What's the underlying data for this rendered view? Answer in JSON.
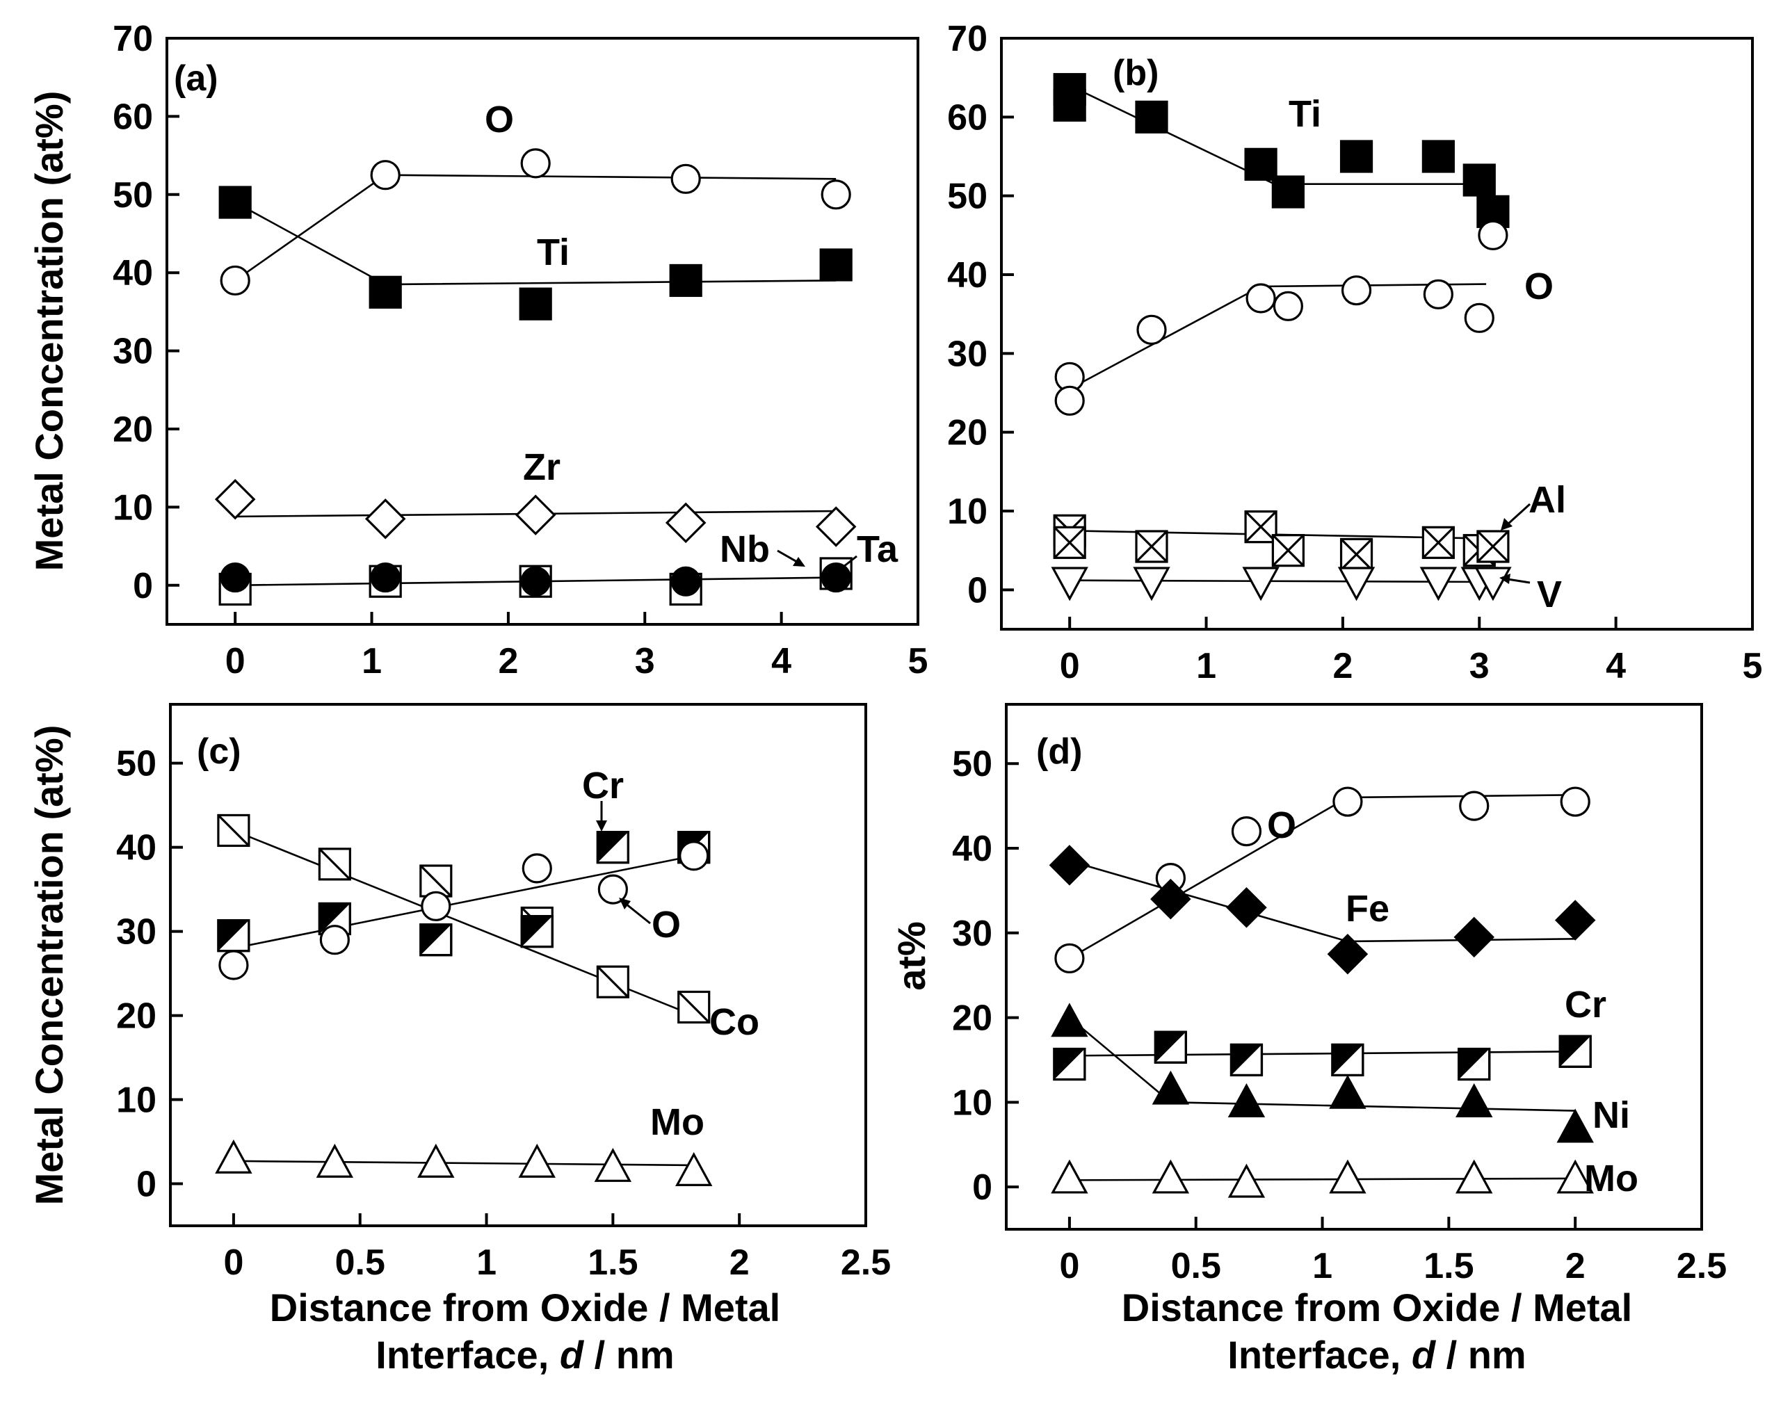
{
  "chart_data": [
    {
      "id": "a",
      "type": "scatter",
      "panel_label": "(a)",
      "xlabel": "",
      "ylabel": "Metal Concentration (at%)",
      "xlim": [
        -0.5,
        5
      ],
      "ylim": [
        -5,
        70
      ],
      "xticks": [
        "0",
        "1",
        "2",
        "3",
        "4",
        "5"
      ],
      "yticks": [
        "0",
        "10",
        "20",
        "30",
        "40",
        "50",
        "60",
        "70"
      ],
      "series": [
        {
          "name": "O",
          "marker": "circle-open",
          "x": [
            0,
            1.1,
            2.2,
            3.3,
            4.4
          ],
          "y": [
            39,
            52.5,
            54,
            52,
            50
          ],
          "fit": [
            [
              0,
              39
            ],
            [
              1.1,
              52.5
            ],
            [
              4.4,
              52
            ]
          ]
        },
        {
          "name": "Ti",
          "marker": "square-filled",
          "x": [
            0,
            1.1,
            2.2,
            3.3,
            4.4
          ],
          "y": [
            49,
            37.5,
            36,
            39,
            41
          ],
          "fit": [
            [
              0,
              49
            ],
            [
              1.1,
              38.5
            ],
            [
              4.4,
              39
            ]
          ]
        },
        {
          "name": "Zr",
          "marker": "diamond-open",
          "x": [
            0,
            1.1,
            2.2,
            3.3,
            4.4
          ],
          "y": [
            11,
            8.5,
            9,
            8,
            7.5
          ],
          "fit": [
            [
              0,
              8.8
            ],
            [
              4.4,
              9.5
            ]
          ]
        },
        {
          "name": "Nb",
          "marker": "square-open",
          "x": [
            0,
            1.1,
            2.2,
            3.3,
            4.4
          ],
          "y": [
            -0.5,
            0.5,
            0.5,
            -0.5,
            1.5
          ],
          "fit": [
            [
              0,
              0
            ],
            [
              4.4,
              1
            ]
          ]
        },
        {
          "name": "Ta",
          "marker": "circle-filled",
          "x": [
            0,
            1.1,
            2.2,
            3.3,
            4.4
          ],
          "y": [
            1,
            1,
            0.5,
            0.5,
            1
          ],
          "fit": null
        }
      ]
    },
    {
      "id": "b",
      "type": "scatter",
      "panel_label": "(b)",
      "xlabel": "",
      "ylabel": "",
      "xlim": [
        -0.5,
        5
      ],
      "ylim": [
        -5,
        70
      ],
      "xticks": [
        "0",
        "1",
        "2",
        "3",
        "4",
        "5"
      ],
      "yticks": [
        "0",
        "10",
        "20",
        "30",
        "40",
        "50",
        "60",
        "70"
      ],
      "series": [
        {
          "name": "Ti",
          "marker": "square-filled",
          "x": [
            0,
            0,
            0.6,
            1.4,
            1.6,
            2.1,
            2.7,
            3.0,
            3.1
          ],
          "y": [
            63.5,
            61.5,
            60,
            54,
            50.5,
            55,
            55,
            52,
            48
          ],
          "fit": [
            [
              0,
              64
            ],
            [
              1.5,
              51.5
            ],
            [
              3.05,
              51.5
            ],
            [
              3.1,
              46
            ]
          ]
        },
        {
          "name": "O",
          "marker": "circle-open",
          "x": [
            0,
            0,
            0.6,
            1.4,
            1.6,
            2.1,
            2.7,
            3.0,
            3.1
          ],
          "y": [
            27,
            24,
            33,
            37,
            36,
            38,
            37.5,
            34.5,
            45
          ],
          "fit": [
            [
              0,
              25.5
            ],
            [
              1.4,
              38.5
            ],
            [
              3.05,
              38.8
            ]
          ]
        },
        {
          "name": "Al",
          "marker": "square-x",
          "x": [
            0,
            0,
            0.6,
            1.4,
            1.6,
            2.1,
            2.7,
            3.0,
            3.1
          ],
          "y": [
            7.5,
            6,
            5.5,
            8,
            5,
            4.5,
            6,
            5,
            5.5
          ],
          "fit": [
            [
              0,
              7.5
            ],
            [
              3.1,
              6.5
            ]
          ]
        },
        {
          "name": "V",
          "marker": "triangle-down-open",
          "x": [
            0,
            0.6,
            1.4,
            2.1,
            2.7,
            3.0,
            3.1
          ],
          "y": [
            1,
            1,
            1,
            1,
            1,
            1,
            1
          ],
          "fit": [
            [
              0,
              1.2
            ],
            [
              3.1,
              1
            ]
          ]
        }
      ]
    },
    {
      "id": "c",
      "type": "scatter",
      "panel_label": "(c)",
      "xlabel": "Distance from Oxide / Metal Interface, d / nm",
      "ylabel": "Metal Concentration (at%)",
      "xlim": [
        -0.25,
        2.5
      ],
      "ylim": [
        -5,
        57
      ],
      "xticks": [
        "0",
        "0.5",
        "1",
        "1.5",
        "2",
        "2.5"
      ],
      "yticks": [
        "0",
        "10",
        "20",
        "30",
        "40",
        "50"
      ],
      "series": [
        {
          "name": "Co",
          "marker": "square-diag",
          "x": [
            0,
            0.4,
            0.8,
            1.2,
            1.5,
            1.82
          ],
          "y": [
            42,
            38,
            36,
            31,
            24,
            21
          ],
          "fit": [
            [
              0,
              42
            ],
            [
              1.82,
              20
            ]
          ]
        },
        {
          "name": "Cr",
          "marker": "square-half",
          "x": [
            0,
            0.4,
            0.8,
            1.2,
            1.5,
            1.82
          ],
          "y": [
            29.5,
            31.5,
            29,
            30,
            40,
            40
          ],
          "fit": null
        },
        {
          "name": "O",
          "marker": "circle-open",
          "x": [
            0,
            0.4,
            0.8,
            1.2,
            1.5,
            1.82
          ],
          "y": [
            26,
            29,
            33,
            37.5,
            35,
            39
          ],
          "fit": [
            [
              0,
              28
            ],
            [
              1.82,
              39
            ]
          ]
        },
        {
          "name": "Mo",
          "marker": "triangle-up-open",
          "x": [
            0,
            0.4,
            0.8,
            1.2,
            1.5,
            1.82
          ],
          "y": [
            3,
            2.5,
            2.5,
            2.5,
            2,
            1.5
          ],
          "fit": [
            [
              0,
              2.7
            ],
            [
              1.82,
              2.2
            ]
          ]
        }
      ]
    },
    {
      "id": "d",
      "type": "scatter",
      "panel_label": "(d)",
      "xlabel": "Distance from Oxide / Metal Interface, d / nm",
      "ylabel": "at%",
      "xlim": [
        -0.25,
        2.5
      ],
      "ylim": [
        -5,
        57
      ],
      "xticks": [
        "0",
        "0.5",
        "1",
        "1.5",
        "2",
        "2.5"
      ],
      "yticks": [
        "0",
        "10",
        "20",
        "30",
        "40",
        "50"
      ],
      "series": [
        {
          "name": "O",
          "marker": "circle-open",
          "x": [
            0,
            0.4,
            0.7,
            1.1,
            1.6,
            2.0
          ],
          "y": [
            27,
            36.5,
            42,
            45.5,
            45,
            45.5
          ],
          "fit": [
            [
              0,
              27
            ],
            [
              1.1,
              46
            ],
            [
              2.0,
              46.3
            ]
          ]
        },
        {
          "name": "Fe",
          "marker": "diamond-filled",
          "x": [
            0,
            0.4,
            0.7,
            1.1,
            1.6,
            2.0
          ],
          "y": [
            38,
            34,
            33,
            27.5,
            29.5,
            31.5
          ],
          "fit": [
            [
              0,
              38.5
            ],
            [
              1.1,
              29
            ],
            [
              2.0,
              29.3
            ]
          ]
        },
        {
          "name": "Cr",
          "marker": "square-half",
          "x": [
            0,
            0.4,
            0.7,
            1.1,
            1.6,
            2.0
          ],
          "y": [
            14.5,
            16.5,
            15,
            15,
            14.5,
            16
          ],
          "fit": [
            [
              0,
              15.5
            ],
            [
              2.0,
              16
            ]
          ]
        },
        {
          "name": "Ni",
          "marker": "triangle-up-filled",
          "x": [
            0,
            0.4,
            0.7,
            1.1,
            1.6,
            2.0
          ],
          "y": [
            19.5,
            11.5,
            10,
            11,
            10,
            7
          ],
          "fit": [
            [
              0,
              20
            ],
            [
              0.4,
              10
            ],
            [
              2.0,
              9
            ]
          ]
        },
        {
          "name": "Mo",
          "marker": "triangle-up-open",
          "x": [
            0,
            0.4,
            0.7,
            1.1,
            1.6,
            2.0
          ],
          "y": [
            1,
            1,
            0.5,
            1,
            1,
            1
          ],
          "fit": [
            [
              0,
              0.8
            ],
            [
              2.0,
              1
            ]
          ]
        }
      ]
    }
  ],
  "texts": {
    "ylabel_left": "Metal Concentration (at%)",
    "ylabel_c": "Metal Concentration (at%)",
    "ylabel_d": "at%",
    "xlabel_c_line1": "Distance from Oxide / Metal",
    "xlabel_c_line2_pre": "Interface, ",
    "xlabel_c_line2_var": "d",
    "xlabel_c_line2_post": " / nm",
    "xlabel_d_line1": "Distance from Oxide / Metal",
    "xlabel_d_line2_pre": "Interface, ",
    "xlabel_d_line2_var": "d",
    "xlabel_d_line2_post": " / nm"
  },
  "colors": {
    "ink": "#000000",
    "background": "#ffffff"
  }
}
